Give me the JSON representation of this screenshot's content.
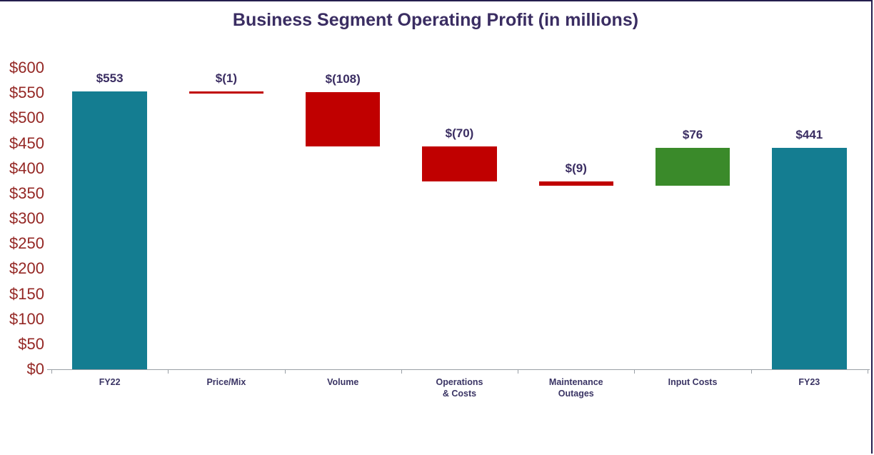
{
  "window": {
    "background": "#ffffff",
    "border_color": "#241e4e"
  },
  "chart_data": {
    "type": "bar",
    "subtype": "waterfall",
    "title": "Business Segment Operating Profit (in millions)",
    "xlabel": "",
    "ylabel": "",
    "ylim": [
      0,
      600
    ],
    "ytick_step": 50,
    "yticks": [
      "$0",
      "$50",
      "$100",
      "$150",
      "$200",
      "$250",
      "$300",
      "$350",
      "$400",
      "$450",
      "$500",
      "$550",
      "$600"
    ],
    "grid": false,
    "legend": "none",
    "colors": {
      "total": "#147d91",
      "decrease": "#c00000",
      "increase": "#3a8a2a"
    },
    "text_colors": {
      "title": "#3a2d62",
      "ytick": "#942724",
      "xtick": "#3a3464",
      "datalabel": "#3a2d62"
    },
    "axis_line_color": "#9aa0a6",
    "steps": [
      {
        "label": "FY22",
        "value": 553,
        "display": "$553",
        "kind": "total"
      },
      {
        "label": "Price/Mix",
        "value": -1,
        "display": "$(1)",
        "kind": "decrease"
      },
      {
        "label": "Volume",
        "value": -108,
        "display": "$(108)",
        "kind": "decrease"
      },
      {
        "label": "Operations\n& Costs",
        "value": -70,
        "display": "$(70)",
        "kind": "decrease"
      },
      {
        "label": "Maintenance\nOutages",
        "value": -9,
        "display": "$(9)",
        "kind": "decrease"
      },
      {
        "label": "Input Costs",
        "value": 76,
        "display": "$76",
        "kind": "increase"
      },
      {
        "label": "FY23",
        "value": 441,
        "display": "$441",
        "kind": "total"
      }
    ]
  }
}
